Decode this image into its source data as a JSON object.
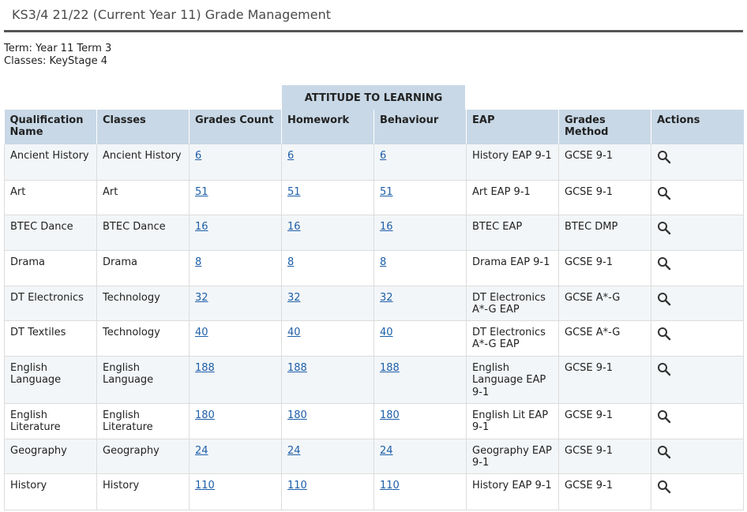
{
  "page": {
    "title": "KS3/4 21/22 (Current Year 11) Grade Management",
    "term": "Term: Year 11 Term 3",
    "classes": "Classes: KeyStage 4"
  },
  "table": {
    "group_header": "ATTITUDE TO LEARNING",
    "columns": [
      "Qualification Name",
      "Classes",
      "Grades Count",
      "Homework",
      "Behaviour",
      "EAP",
      "Grades Method",
      "Actions"
    ],
    "rows": [
      {
        "qualification": "Ancient History",
        "classes": "Ancient History",
        "grades_count": "6",
        "homework": "6",
        "behaviour": "6",
        "eap": "History EAP 9-1",
        "grades_method": "GCSE 9-1",
        "action_icon": "search-icon"
      },
      {
        "qualification": "Art",
        "classes": "Art",
        "grades_count": "51",
        "homework": "51",
        "behaviour": "51",
        "eap": "Art EAP 9-1",
        "grades_method": "GCSE 9-1",
        "action_icon": "search-icon"
      },
      {
        "qualification": "BTEC Dance",
        "classes": "BTEC Dance",
        "grades_count": "16",
        "homework": "16",
        "behaviour": "16",
        "eap": "BTEC EAP",
        "grades_method": "BTEC DMP",
        "action_icon": "search-icon"
      },
      {
        "qualification": "Drama",
        "classes": "Drama",
        "grades_count": "8",
        "homework": "8",
        "behaviour": "8",
        "eap": "Drama EAP 9-1",
        "grades_method": "GCSE 9-1",
        "action_icon": "search-icon"
      },
      {
        "qualification": "DT Electronics",
        "classes": "Technology",
        "grades_count": "32",
        "homework": "32",
        "behaviour": "32",
        "eap": "DT Electronics A*-G EAP",
        "grades_method": "GCSE A*-G",
        "action_icon": "search-icon"
      },
      {
        "qualification": "DT Textiles",
        "classes": "Technology",
        "grades_count": "40",
        "homework": "40",
        "behaviour": "40",
        "eap": "DT Electronics A*-G EAP",
        "grades_method": "GCSE A*-G",
        "action_icon": "search-icon"
      },
      {
        "qualification": "English Language",
        "classes": "English Language",
        "grades_count": "188",
        "homework": "188",
        "behaviour": "188",
        "eap": "English Language EAP 9-1",
        "grades_method": "GCSE 9-1",
        "action_icon": "search-icon"
      },
      {
        "qualification": "English Literature",
        "classes": "English Literature",
        "grades_count": "180",
        "homework": "180",
        "behaviour": "180",
        "eap": "English Lit EAP 9-1",
        "grades_method": "GCSE 9-1",
        "action_icon": "search-icon"
      },
      {
        "qualification": "Geography",
        "classes": "Geography",
        "grades_count": "24",
        "homework": "24",
        "behaviour": "24",
        "eap": "Geography EAP 9-1",
        "grades_method": "GCSE 9-1",
        "action_icon": "search-icon"
      },
      {
        "qualification": "History",
        "classes": "History",
        "grades_count": "110",
        "homework": "110",
        "behaviour": "110",
        "eap": "History EAP 9-1",
        "grades_method": "GCSE 9-1",
        "action_icon": "search-icon"
      }
    ]
  }
}
